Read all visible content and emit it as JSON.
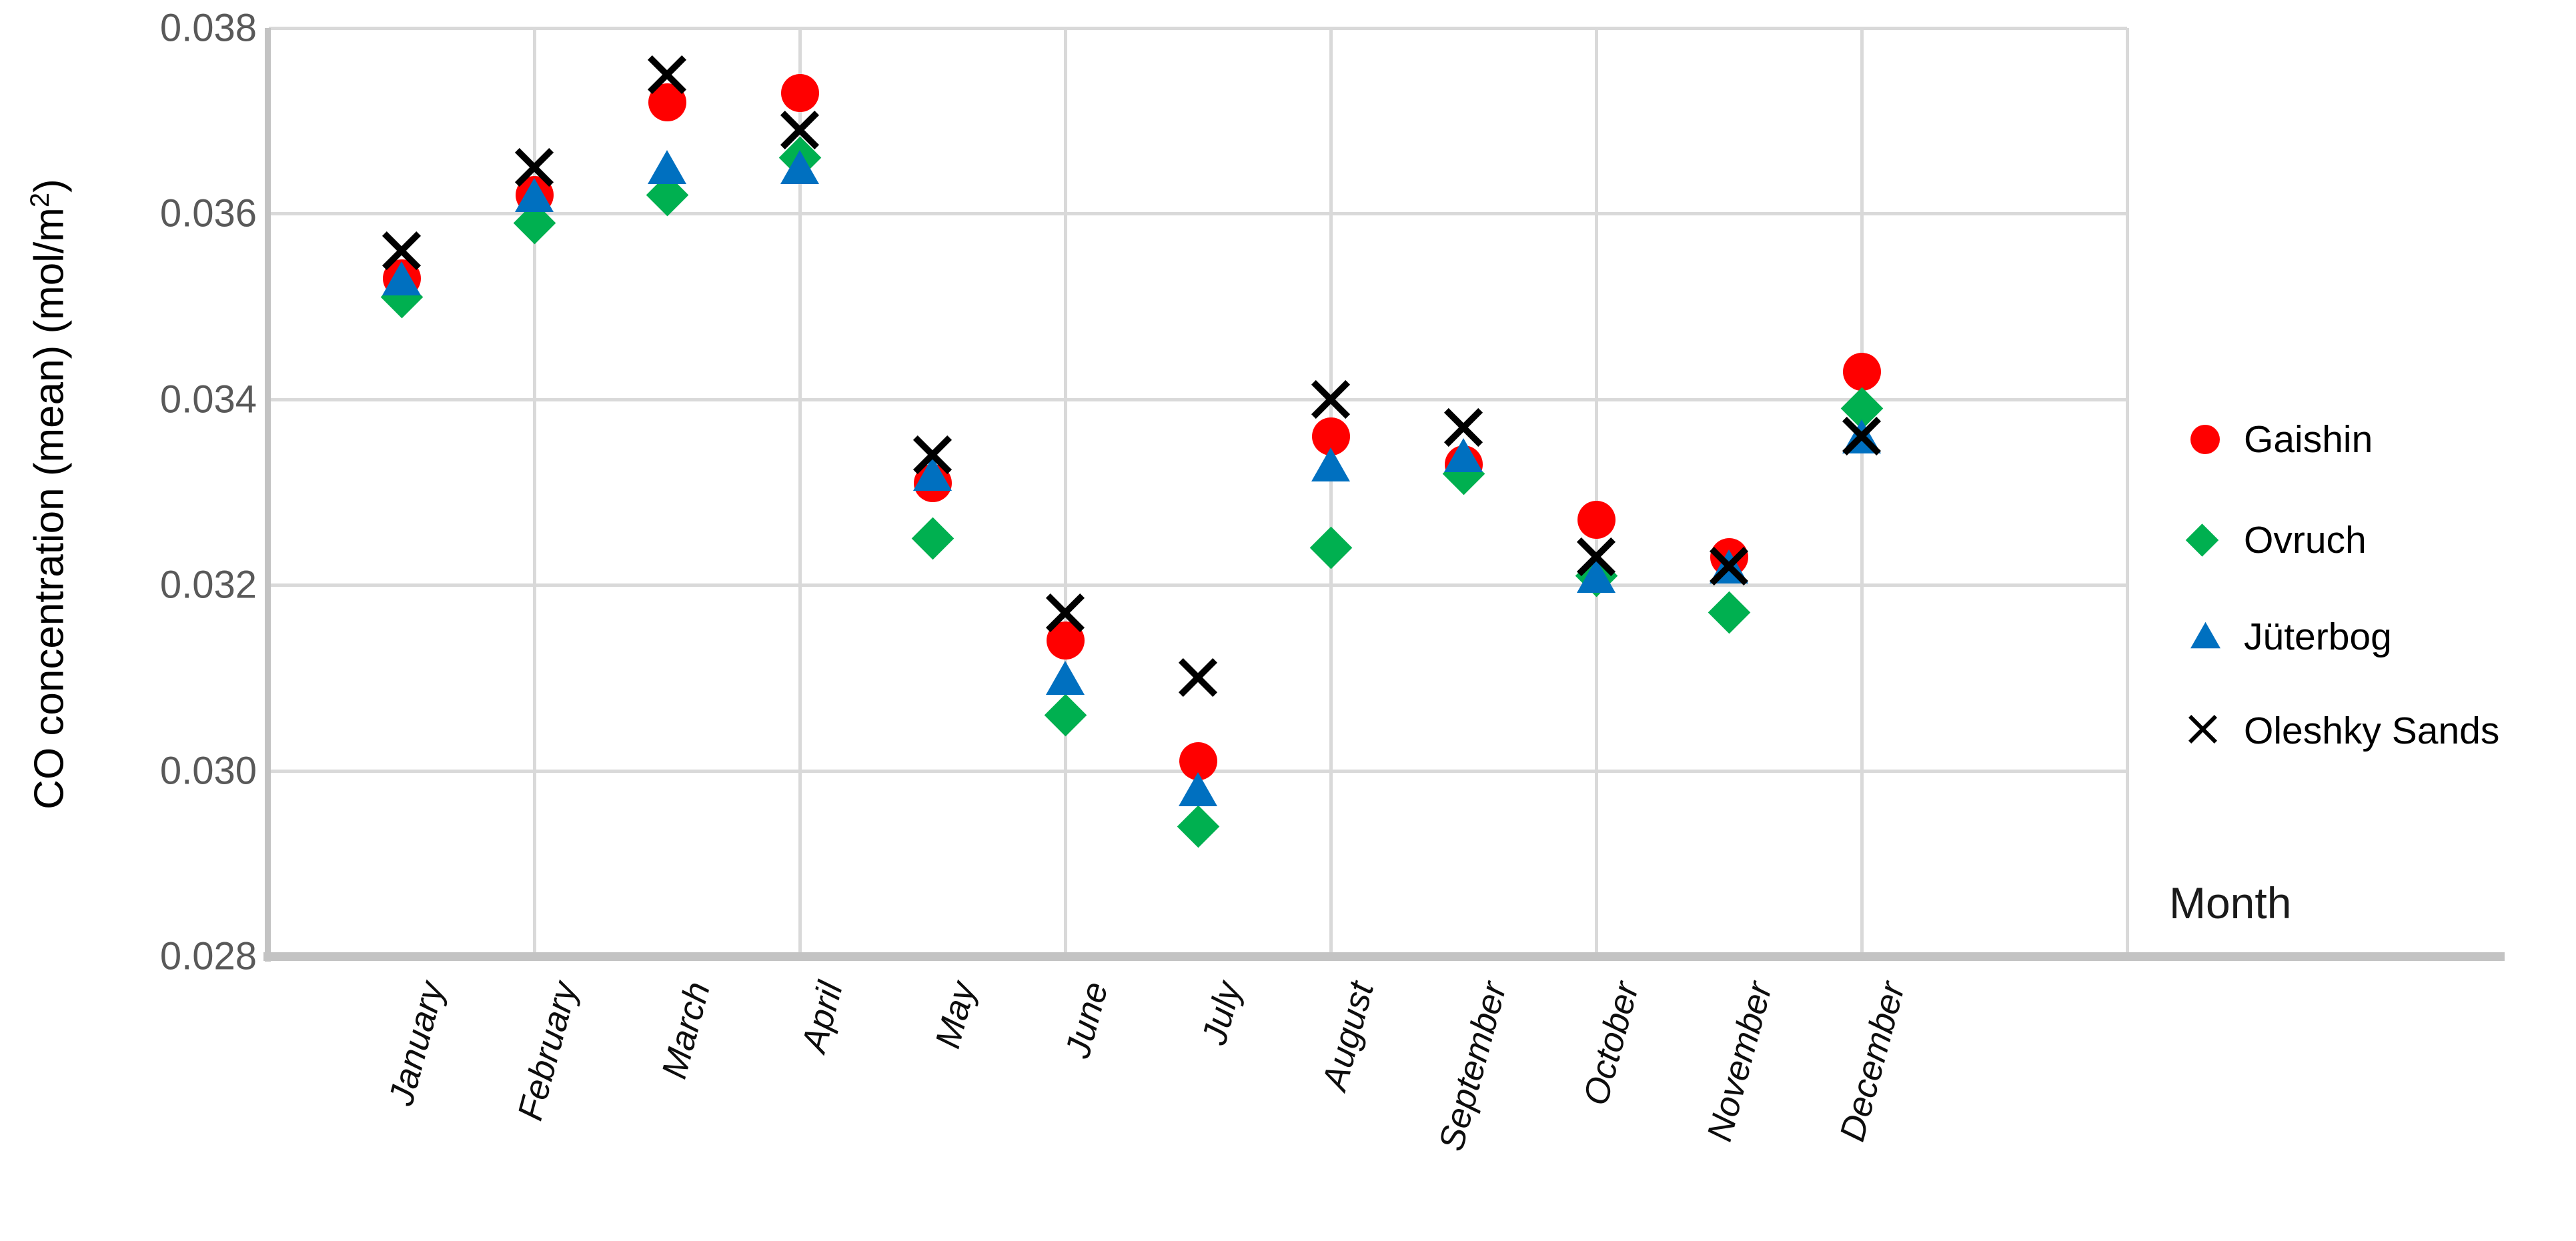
{
  "chart": {
    "xlabel": "Month",
    "ylabel_prefix": "CO concentration (mean) (mol/m",
    "ylabel_sup": "2",
    "ylabel_suffix": ")",
    "colors": {
      "gaishin_red": "#ff0000",
      "ovruch_green": "#00b050",
      "juterbog_blue": "#0070c0",
      "oleshky_black": "#000000",
      "gridline": "#d9d9d9",
      "axis_line": "#c3c3c3",
      "tick_text": "#595959"
    }
  },
  "chart_data": {
    "type": "scatter",
    "title": "",
    "xlabel": "Month",
    "ylabel": "CO concentration (mean) (mol/m2)",
    "categories": [
      "January",
      "February",
      "March",
      "April",
      "May",
      "June",
      "July",
      "August",
      "September",
      "October",
      "November",
      "December"
    ],
    "yticks": [
      "0.038",
      "0.036",
      "0.034",
      "0.032",
      "0.030",
      "0.028"
    ],
    "ylim": [
      0.028,
      0.038
    ],
    "y_major_unit": 0.002,
    "x_gridline_every_n_categories": 2,
    "grid": "horizontal and vertical, light gray",
    "legend_position": "right",
    "series": [
      {
        "name": "Gaishin",
        "marker": "circle",
        "color": "#ff0000",
        "values": [
          0.0353,
          0.0362,
          0.0372,
          0.0373,
          0.0331,
          0.0314,
          0.0301,
          0.0336,
          0.0333,
          0.0327,
          0.0323,
          0.0343
        ]
      },
      {
        "name": "Ovruch",
        "marker": "diamond",
        "color": "#00b050",
        "values": [
          0.0351,
          0.0359,
          0.0362,
          0.0366,
          0.0325,
          0.0306,
          0.0294,
          0.0324,
          0.0332,
          0.0321,
          0.0317,
          0.0339
        ]
      },
      {
        "name": "Jüterbog",
        "marker": "triangle",
        "color": "#0070c0",
        "values": [
          0.0353,
          0.0362,
          0.0365,
          0.0365,
          0.0332,
          0.031,
          0.0298,
          0.0333,
          0.0334,
          0.0321,
          0.0322,
          0.0336
        ]
      },
      {
        "name": "Oleshky Sands",
        "marker": "x",
        "color": "#000000",
        "values": [
          0.0356,
          0.0365,
          0.0375,
          0.0369,
          0.0334,
          0.0317,
          0.031,
          0.034,
          0.0337,
          0.0323,
          0.0322,
          0.0336
        ]
      }
    ]
  }
}
